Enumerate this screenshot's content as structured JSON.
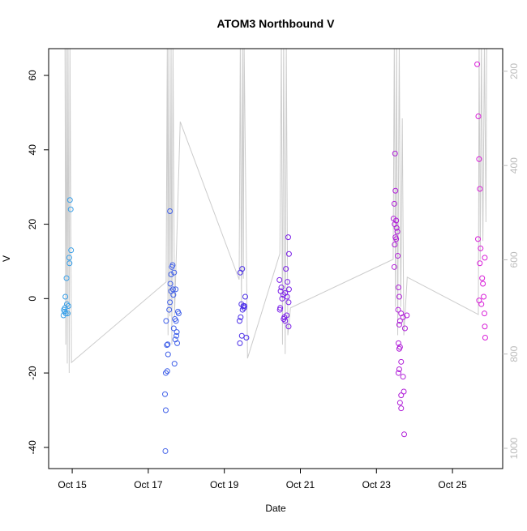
{
  "chart_data": {
    "type": "scatter",
    "title": "ATOM3 Northbound V",
    "x_label": "Date",
    "y_label": "V",
    "xlim": [
      14.38,
      26.32
    ],
    "xticks": [
      {
        "value": 15,
        "label": "Oct 15"
      },
      {
        "value": 17,
        "label": "Oct 17"
      },
      {
        "value": 19,
        "label": "Oct 19"
      },
      {
        "value": 21,
        "label": "Oct 21"
      },
      {
        "value": 23,
        "label": "Oct 23"
      },
      {
        "value": 25,
        "label": "Oct 25"
      }
    ],
    "ylim": [
      -45.7,
      67.2
    ],
    "yticks": [
      -40,
      -20,
      0,
      20,
      40,
      60
    ],
    "y2lim": [
      1043,
      152
    ],
    "y2ticks": [
      200,
      400,
      600,
      800,
      1000
    ],
    "y2tick_color": "#bbbbbb",
    "series": [
      {
        "type": "line",
        "axis": "y2",
        "color": "#cccccc",
        "x": [
          14.81,
          14.83,
          14.85,
          14.87,
          14.89,
          14.92,
          14.94,
          14.98,
          17.47,
          17.5,
          17.52,
          17.54,
          17.57,
          17.6,
          17.62,
          17.65,
          17.69,
          17.84,
          19.39,
          19.42,
          19.45,
          19.48,
          19.5,
          19.52,
          19.61,
          20.46,
          20.5,
          20.53,
          20.56,
          20.6,
          20.63,
          20.67,
          20.74,
          23.44,
          23.47,
          23.5,
          23.53,
          23.56,
          23.6,
          23.64,
          23.68,
          23.72,
          23.81,
          25.68,
          25.7,
          25.73,
          25.76,
          25.8,
          25.84,
          25.88,
          25.9
        ],
        "values": [
          140,
          780,
          140,
          820,
          140,
          840,
          140,
          818,
          647,
          140,
          760,
          140,
          720,
          140,
          780,
          140,
          720,
          307,
          642,
          140,
          700,
          140,
          640,
          140,
          809,
          587,
          140,
          780,
          140,
          800,
          140,
          760,
          702,
          599,
          140,
          700,
          140,
          760,
          140,
          700,
          300,
          760,
          637,
          716,
          140,
          600,
          140,
          560,
          140,
          520,
          140
        ]
      },
      {
        "type": "points",
        "color": "#3aa0e8",
        "x": [
          14.94,
          14.96,
          14.97,
          14.92,
          14.93,
          14.85,
          14.82,
          14.86,
          14.9,
          14.78,
          14.8,
          14.83,
          14.77,
          14.88,
          14.81
        ],
        "values": [
          26.5,
          24,
          13,
          11,
          9.5,
          5.5,
          0.5,
          -1.5,
          -2,
          -3,
          -3.5,
          -4,
          -4.5,
          -4,
          -2.5
        ]
      },
      {
        "type": "points",
        "color": "#3f5fe8",
        "x": [
          17.45,
          17.46,
          17.44,
          17.46,
          17.5,
          17.52,
          17.49,
          17.51,
          17.47,
          17.55,
          17.57,
          17.6,
          17.65,
          17.58,
          17.6,
          17.62,
          17.68,
          17.64,
          17.57,
          17.7,
          17.73,
          17.67,
          17.75,
          17.74,
          17.71,
          17.76,
          17.69,
          17.78,
          17.8,
          17.66,
          17.72
        ],
        "values": [
          -41,
          -30,
          -25.7,
          -20,
          -19.5,
          -15,
          -12.5,
          -12.3,
          -6,
          -3,
          -1,
          2,
          2.5,
          4,
          6.5,
          8.5,
          7,
          9,
          23.5,
          -5.5,
          -6,
          -8,
          -9,
          -10,
          -11,
          -12,
          -17.5,
          -3.5,
          -4,
          1,
          2.5
        ]
      },
      {
        "type": "points",
        "color": "#4a2ee8",
        "x": [
          19.47,
          19.42,
          19.55,
          19.45,
          19.5,
          19.52,
          19.48,
          19.53,
          19.43,
          19.4,
          19.46,
          19.58,
          19.41
        ],
        "values": [
          8,
          7,
          0.5,
          -1.5,
          -2,
          -2.5,
          -3,
          -2,
          -5,
          -6,
          -10,
          -10.5,
          -12
        ]
      },
      {
        "type": "points",
        "color": "#7a1ee8",
        "x": [
          20.68,
          20.7,
          20.62,
          20.45,
          20.66,
          20.5,
          20.7,
          20.48,
          20.6,
          20.55,
          20.65,
          20.52,
          20.69,
          20.47,
          20.46,
          20.64,
          20.58,
          20.56,
          20.6,
          20.69
        ],
        "values": [
          16.5,
          12,
          8,
          5,
          4.5,
          3,
          2.5,
          2,
          1.5,
          1,
          0.5,
          0,
          -1,
          -2.5,
          -3,
          -4.5,
          -5,
          -5.5,
          -6,
          -7.5
        ]
      },
      {
        "type": "points",
        "color": "#b01ed8",
        "x": [
          23.49,
          23.5,
          23.47,
          23.45,
          23.52,
          23.48,
          23.53,
          23.55,
          23.5,
          23.52,
          23.48,
          23.56,
          23.47,
          23.58,
          23.6,
          23.57,
          23.65,
          23.7,
          23.62,
          23.6,
          23.75,
          23.58,
          23.62,
          23.6,
          23.65,
          23.6,
          23.58,
          23.7,
          23.72,
          23.65,
          23.62,
          23.65,
          23.73,
          23.8
        ],
        "values": [
          39,
          29,
          25.5,
          21.5,
          21,
          20,
          19,
          18,
          16.5,
          16,
          14.5,
          11.5,
          8.5,
          3,
          0.5,
          -3,
          -4,
          -5,
          -6,
          -7,
          -8,
          -12,
          -13,
          -13.5,
          -17,
          -19,
          -20,
          -21,
          -25,
          -26,
          -28,
          -29.5,
          -36.5,
          -4.5
        ]
      },
      {
        "type": "points",
        "color": "#d81ed8",
        "x": [
          25.65,
          25.68,
          25.7,
          25.72,
          25.67,
          25.74,
          25.85,
          25.72,
          25.78,
          25.8,
          25.82,
          25.7,
          25.76,
          25.84,
          25.85,
          25.86
        ],
        "values": [
          63,
          49,
          37.5,
          29.5,
          16,
          13.5,
          11,
          9.5,
          5.5,
          4,
          0.5,
          -0.5,
          -1.5,
          -4,
          -7.5,
          -10.5
        ]
      }
    ]
  }
}
